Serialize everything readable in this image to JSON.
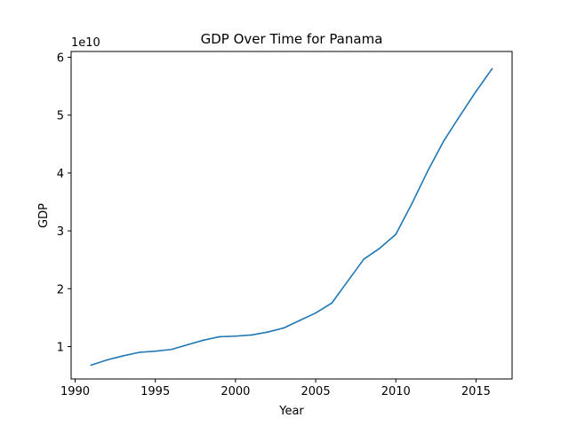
{
  "chart_data": {
    "type": "line",
    "title": "GDP Over Time for Panama",
    "xlabel": "Year",
    "ylabel": "GDP",
    "y_offset_label": "1e10",
    "y_scale_factor": 10000000000,
    "xlim": [
      1989.75,
      2017.25
    ],
    "ylim": [
      4400000000,
      61000000000
    ],
    "x_ticks": [
      1990,
      1995,
      2000,
      2005,
      2010,
      2015
    ],
    "x_tick_labels": [
      "1990",
      "1995",
      "2000",
      "2005",
      "2010",
      "2015"
    ],
    "y_ticks": [
      10000000000,
      20000000000,
      30000000000,
      40000000000,
      50000000000,
      60000000000
    ],
    "y_tick_labels": [
      "1",
      "2",
      "3",
      "4",
      "5",
      "6"
    ],
    "grid": false,
    "colors": {
      "series": "#1f77b4"
    },
    "series": [
      {
        "x": [
          1991,
          1992,
          1993,
          1994,
          1995,
          1996,
          1997,
          1998,
          1999,
          2000,
          2001,
          2002,
          2003,
          2004,
          2005,
          2006,
          2007,
          2008,
          2009,
          2010,
          2011,
          2012,
          2013,
          2014,
          2015,
          2016
        ],
        "values": [
          6800000000,
          7700000000,
          8400000000,
          9000000000,
          9200000000,
          9500000000,
          10300000000,
          11100000000,
          11700000000,
          11800000000,
          12000000000,
          12500000000,
          13200000000,
          14500000000,
          15800000000,
          17500000000,
          21300000000,
          25100000000,
          27000000000,
          29400000000,
          34700000000,
          40400000000,
          45600000000,
          49900000000,
          54100000000,
          58000000000
        ]
      }
    ]
  }
}
